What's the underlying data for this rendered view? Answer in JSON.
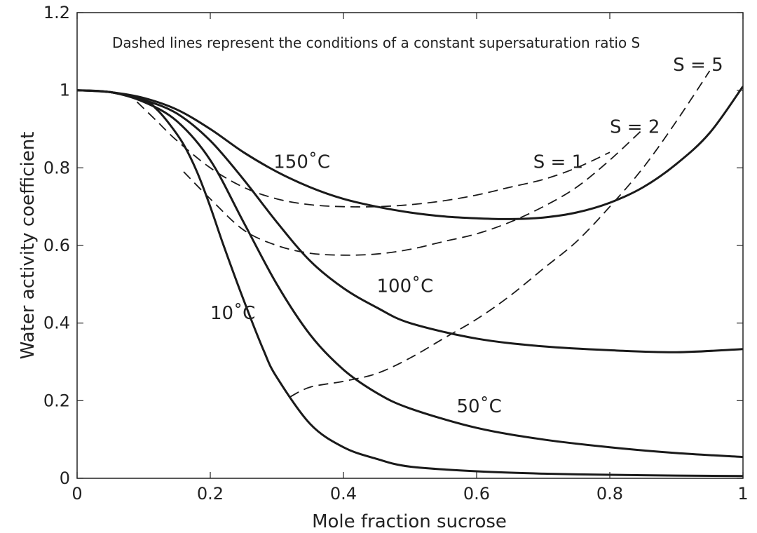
{
  "chart_data": {
    "type": "line",
    "title": "",
    "annotation": "Dashed lines represent the conditions of a constant supersaturation ratio S",
    "xlabel": "Mole fraction sucrose",
    "ylabel": "Water activity coefficient",
    "xlim": [
      0,
      1
    ],
    "ylim": [
      0,
      1.2
    ],
    "x_ticks": [
      "0",
      "0.2",
      "0.4",
      "0.6",
      "0.8",
      "1"
    ],
    "y_ticks": [
      "0",
      "0.2",
      "0.4",
      "0.6",
      "0.8",
      "1",
      "1.2"
    ],
    "grid": false,
    "series": [
      {
        "name": "10˚C",
        "style": "solid",
        "label_at": [
          0.2,
          0.41
        ],
        "x": [
          0,
          0.05,
          0.1,
          0.12,
          0.14,
          0.16,
          0.18,
          0.2,
          0.22,
          0.25,
          0.28,
          0.3,
          0.35,
          0.4,
          0.45,
          0.5,
          0.6,
          0.7,
          0.8,
          0.9,
          1.0
        ],
        "y": [
          1.0,
          0.995,
          0.975,
          0.95,
          0.91,
          0.86,
          0.79,
          0.7,
          0.6,
          0.46,
          0.33,
          0.26,
          0.14,
          0.08,
          0.05,
          0.03,
          0.018,
          0.012,
          0.009,
          0.007,
          0.006
        ]
      },
      {
        "name": "50˚C",
        "style": "solid",
        "label_at": [
          0.57,
          0.17
        ],
        "x": [
          0,
          0.05,
          0.1,
          0.15,
          0.2,
          0.25,
          0.3,
          0.35,
          0.4,
          0.45,
          0.5,
          0.6,
          0.7,
          0.8,
          0.9,
          1.0
        ],
        "y": [
          1.0,
          0.995,
          0.97,
          0.92,
          0.82,
          0.66,
          0.5,
          0.37,
          0.28,
          0.22,
          0.18,
          0.13,
          0.1,
          0.08,
          0.065,
          0.055
        ]
      },
      {
        "name": "100˚C",
        "style": "solid",
        "label_at": [
          0.45,
          0.48
        ],
        "x": [
          0,
          0.05,
          0.1,
          0.15,
          0.2,
          0.25,
          0.3,
          0.35,
          0.4,
          0.45,
          0.5,
          0.6,
          0.7,
          0.8,
          0.9,
          1.0
        ],
        "y": [
          1.0,
          0.995,
          0.975,
          0.94,
          0.87,
          0.77,
          0.66,
          0.56,
          0.49,
          0.44,
          0.4,
          0.36,
          0.34,
          0.33,
          0.325,
          0.333
        ]
      },
      {
        "name": "150˚C",
        "style": "solid",
        "label_at": [
          0.295,
          0.8
        ],
        "x": [
          0,
          0.05,
          0.1,
          0.15,
          0.2,
          0.25,
          0.3,
          0.35,
          0.4,
          0.45,
          0.5,
          0.55,
          0.6,
          0.65,
          0.7,
          0.75,
          0.8,
          0.85,
          0.9,
          0.95,
          1.0
        ],
        "y": [
          1.0,
          0.995,
          0.98,
          0.95,
          0.9,
          0.84,
          0.79,
          0.75,
          0.72,
          0.7,
          0.685,
          0.675,
          0.67,
          0.668,
          0.672,
          0.685,
          0.71,
          0.75,
          0.81,
          0.89,
          1.01
        ]
      },
      {
        "name": "S = 1",
        "style": "dashed",
        "label_at": [
          0.685,
          0.8
        ],
        "x": [
          0.09,
          0.12,
          0.15,
          0.2,
          0.25,
          0.3,
          0.35,
          0.4,
          0.45,
          0.5,
          0.55,
          0.6,
          0.65,
          0.7,
          0.75,
          0.8
        ],
        "y": [
          0.97,
          0.92,
          0.87,
          0.8,
          0.75,
          0.72,
          0.705,
          0.7,
          0.7,
          0.705,
          0.715,
          0.73,
          0.75,
          0.77,
          0.8,
          0.84
        ]
      },
      {
        "name": "S = 2",
        "style": "dashed",
        "label_at": [
          0.8,
          0.89
        ],
        "x": [
          0.16,
          0.2,
          0.25,
          0.3,
          0.35,
          0.4,
          0.45,
          0.5,
          0.55,
          0.6,
          0.65,
          0.7,
          0.75,
          0.8,
          0.85
        ],
        "y": [
          0.79,
          0.72,
          0.64,
          0.6,
          0.58,
          0.575,
          0.578,
          0.59,
          0.61,
          0.63,
          0.66,
          0.7,
          0.75,
          0.82,
          0.9
        ]
      },
      {
        "name": "S = 5",
        "style": "dashed",
        "label_at": [
          0.895,
          1.05
        ],
        "x": [
          0.32,
          0.35,
          0.4,
          0.45,
          0.5,
          0.55,
          0.6,
          0.65,
          0.7,
          0.75,
          0.8,
          0.85,
          0.9,
          0.95
        ],
        "y": [
          0.21,
          0.235,
          0.25,
          0.27,
          0.31,
          0.36,
          0.41,
          0.47,
          0.54,
          0.61,
          0.7,
          0.8,
          0.92,
          1.05
        ]
      }
    ]
  }
}
